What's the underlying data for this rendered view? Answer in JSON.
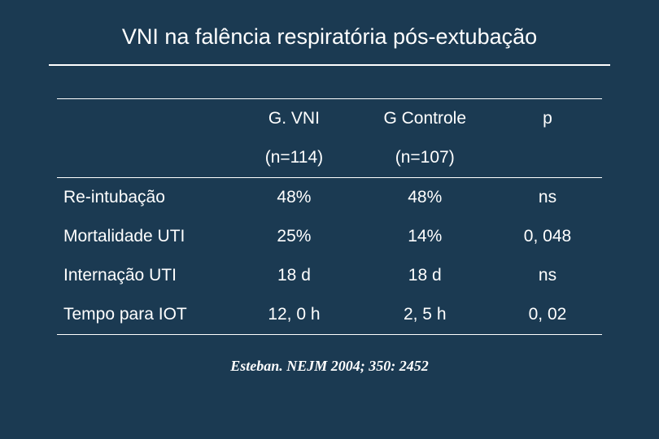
{
  "slide": {
    "title": "VNI na falência respiratória pós-extubação",
    "background_color": "#1b3a52",
    "text_color": "#ffffff",
    "divider_color": "#ffffff"
  },
  "table": {
    "columns": [
      "",
      "G. VNI",
      "G Controle",
      "p"
    ],
    "subheader": [
      "",
      "(n=114)",
      "(n=107)",
      ""
    ],
    "rows": [
      {
        "label": "Re-intubação",
        "vni": "48%",
        "ctrl": "48%",
        "p": "ns"
      },
      {
        "label": "Mortalidade UTI",
        "vni": "25%",
        "ctrl": "14%",
        "p": "0, 048"
      },
      {
        "label": "Internação UTI",
        "vni": "18 d",
        "ctrl": "18 d",
        "p": "ns"
      },
      {
        "label": "Tempo para IOT",
        "vni": "12, 0 h",
        "ctrl": "2, 5 h",
        "p": "0, 02"
      }
    ],
    "header_fontsize": 21,
    "cell_fontsize": 21,
    "border_color": "#ffffff"
  },
  "citation": {
    "text": "Esteban. NEJM 2004; 350: 2452",
    "fontsize": 18,
    "font_style": "italic"
  }
}
